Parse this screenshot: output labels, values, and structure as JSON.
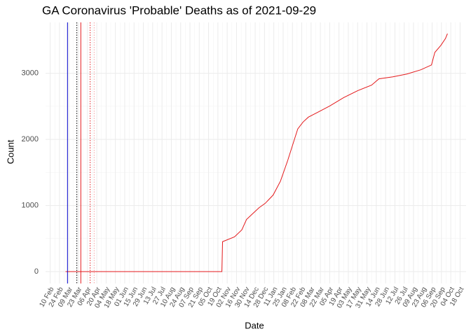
{
  "chart_data": {
    "type": "line",
    "title": "GA Coronavirus 'Probable' Deaths as of 2021-09-29",
    "x_label": "Date",
    "y_label": "Count",
    "x": [
      "2020-03-04",
      "2020-10-25",
      "2020-10-26",
      "2020-11-13",
      "2020-11-24",
      "2020-12-01",
      "2020-12-10",
      "2020-12-20",
      "2020-12-29",
      "2021-01-10",
      "2021-01-21",
      "2021-02-01",
      "2021-02-11",
      "2021-02-16",
      "2021-02-24",
      "2021-03-04",
      "2021-03-20",
      "2021-04-05",
      "2021-04-26",
      "2021-05-17",
      "2021-06-07",
      "2021-06-18",
      "2021-07-09",
      "2021-07-30",
      "2021-08-20",
      "2021-09-05",
      "2021-09-10",
      "2021-09-19",
      "2021-09-26",
      "2021-09-29"
    ],
    "series": [
      {
        "color": "#e41a1c",
        "values": [
          0,
          0,
          453,
          526,
          632,
          789,
          874,
          968,
          1032,
          1158,
          1368,
          1684,
          2000,
          2158,
          2263,
          2337,
          2421,
          2505,
          2632,
          2737,
          2821,
          2916,
          2947,
          2989,
          3053,
          3126,
          3316,
          3421,
          3526,
          3600
        ]
      }
    ],
    "vlines": [
      {
        "x": "2020-03-07",
        "color": "#0000cc",
        "dash": false
      },
      {
        "x": "2020-03-21",
        "color": "#000000",
        "dash": true
      },
      {
        "x": "2020-03-27",
        "color": "#e41a1c",
        "dash": false
      },
      {
        "x": "2020-04-10",
        "color": "#e41a1c",
        "dash": true
      },
      {
        "x": "2020-04-16",
        "color": "#f4a0a0",
        "dash": true
      }
    ],
    "xlim": [
      "2020-02-03",
      "2021-10-27"
    ],
    "xticks": [
      {
        "value": "2020-02-10",
        "label": "10 Feb"
      },
      {
        "value": "2020-02-24",
        "label": "24 Feb"
      },
      {
        "value": "2020-03-09",
        "label": "09 Mar"
      },
      {
        "value": "2020-03-23",
        "label": "23 Mar"
      },
      {
        "value": "2020-04-06",
        "label": "06 Apr"
      },
      {
        "value": "2020-04-20",
        "label": "20 Apr"
      },
      {
        "value": "2020-05-04",
        "label": "04 May"
      },
      {
        "value": "2020-05-18",
        "label": "18 May"
      },
      {
        "value": "2020-06-01",
        "label": "01 Jun"
      },
      {
        "value": "2020-06-15",
        "label": "15 Jun"
      },
      {
        "value": "2020-06-29",
        "label": "29 Jun"
      },
      {
        "value": "2020-07-13",
        "label": "13 Jul"
      },
      {
        "value": "2020-07-27",
        "label": "27 Jul"
      },
      {
        "value": "2020-08-10",
        "label": "10 Aug"
      },
      {
        "value": "2020-08-24",
        "label": "24 Aug"
      },
      {
        "value": "2020-09-07",
        "label": "07 Sep"
      },
      {
        "value": "2020-09-21",
        "label": "21 Sep"
      },
      {
        "value": "2020-10-05",
        "label": "05 Oct"
      },
      {
        "value": "2020-10-19",
        "label": "19 Oct"
      },
      {
        "value": "2020-11-02",
        "label": "02 Nov"
      },
      {
        "value": "2020-11-16",
        "label": "16 Nov"
      },
      {
        "value": "2020-11-30",
        "label": "30 Nov"
      },
      {
        "value": "2020-12-14",
        "label": "14 Dec"
      },
      {
        "value": "2020-12-28",
        "label": "28 Dec"
      },
      {
        "value": "2021-01-11",
        "label": "11 Jan"
      },
      {
        "value": "2021-01-25",
        "label": "25 Jan"
      },
      {
        "value": "2021-02-08",
        "label": "08 Feb"
      },
      {
        "value": "2021-02-22",
        "label": "22 Feb"
      },
      {
        "value": "2021-03-08",
        "label": "08 Mar"
      },
      {
        "value": "2021-03-22",
        "label": "22 Mar"
      },
      {
        "value": "2021-04-05",
        "label": "05 Apr"
      },
      {
        "value": "2021-04-19",
        "label": "19 Apr"
      },
      {
        "value": "2021-05-03",
        "label": "03 May"
      },
      {
        "value": "2021-05-17",
        "label": "17 May"
      },
      {
        "value": "2021-05-31",
        "label": "31 May"
      },
      {
        "value": "2021-06-14",
        "label": "14 Jun"
      },
      {
        "value": "2021-06-28",
        "label": "28 Jun"
      },
      {
        "value": "2021-07-12",
        "label": "12 Jul"
      },
      {
        "value": "2021-07-26",
        "label": "26 Jul"
      },
      {
        "value": "2021-08-09",
        "label": "09 Aug"
      },
      {
        "value": "2021-08-23",
        "label": "23 Aug"
      },
      {
        "value": "2021-09-06",
        "label": "06 Sep"
      },
      {
        "value": "2021-09-20",
        "label": "20 Sep"
      },
      {
        "value": "2021-10-04",
        "label": "04 Oct"
      },
      {
        "value": "2021-10-18",
        "label": "18 Oct"
      }
    ],
    "ylim": [
      -180,
      3770
    ],
    "yticks": [
      0,
      1000,
      2000,
      3000
    ],
    "grid": true
  }
}
